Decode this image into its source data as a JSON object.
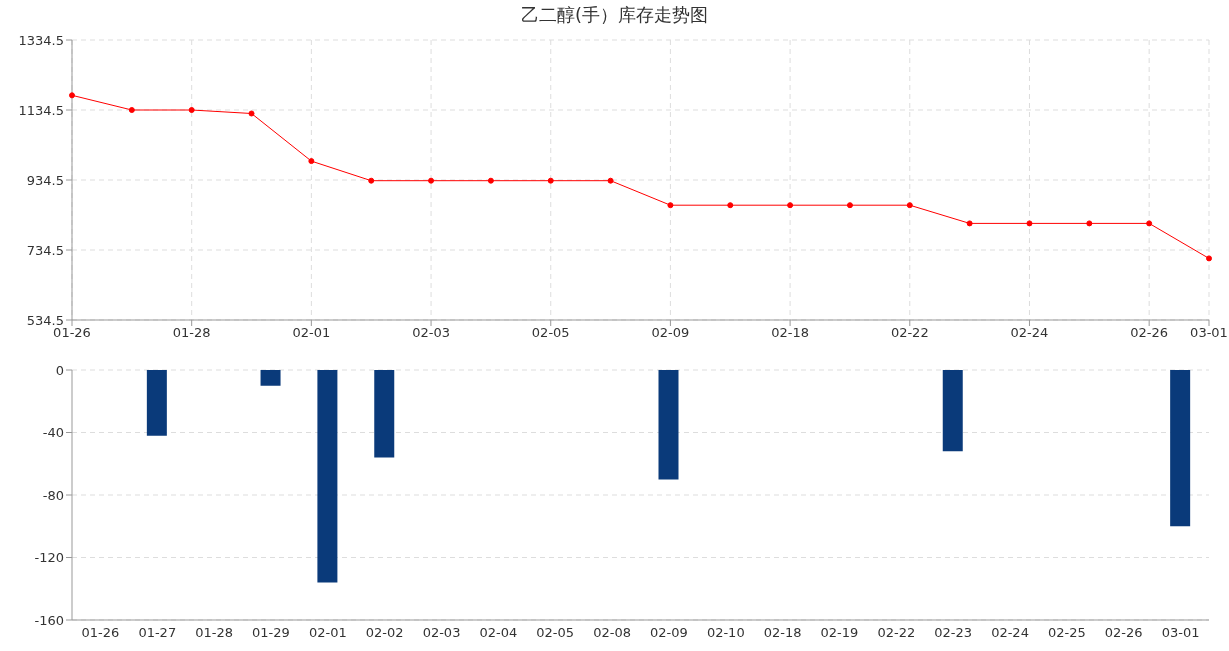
{
  "chart_data": [
    {
      "type": "line",
      "title": "乙二醇(手）库存走势图",
      "categories": [
        "01-26",
        null,
        "01-28",
        null,
        "02-01",
        null,
        "02-03",
        null,
        "02-05",
        null,
        "02-09",
        null,
        "02-18",
        null,
        "02-22",
        null,
        "02-24",
        null,
        "02-26",
        "03-01"
      ],
      "values": [
        1176.5,
        1134.5,
        1134.5,
        1124.5,
        988.5,
        932.5,
        932.5,
        932.5,
        932.5,
        932.5,
        862.5,
        862.5,
        862.5,
        862.5,
        862.5,
        810.5,
        810.5,
        810.5,
        810.5,
        710.5
      ],
      "color": "#ff0000",
      "marker": "circle",
      "ylim": [
        534.5,
        1334.5
      ],
      "yticks": [
        534.5,
        734.5,
        934.5,
        1134.5,
        1334.5
      ],
      "grid": true
    },
    {
      "type": "bar",
      "categories": [
        "01-26",
        "01-27",
        "01-28",
        "01-29",
        "02-01",
        "02-02",
        "02-03",
        "02-04",
        "02-05",
        "02-08",
        "02-09",
        "02-10",
        "02-18",
        "02-19",
        "02-22",
        "02-23",
        "02-24",
        "02-25",
        "02-26",
        "03-01"
      ],
      "values": [
        0,
        -42,
        0,
        -10,
        -136,
        -56,
        0,
        0,
        0,
        0,
        -70,
        0,
        0,
        0,
        0,
        -52,
        0,
        0,
        0,
        -100
      ],
      "color": "#0a3a7a",
      "ylim": [
        -160,
        0
      ],
      "yticks": [
        -160,
        -120,
        -80,
        -40,
        0
      ],
      "grid": "y"
    }
  ]
}
